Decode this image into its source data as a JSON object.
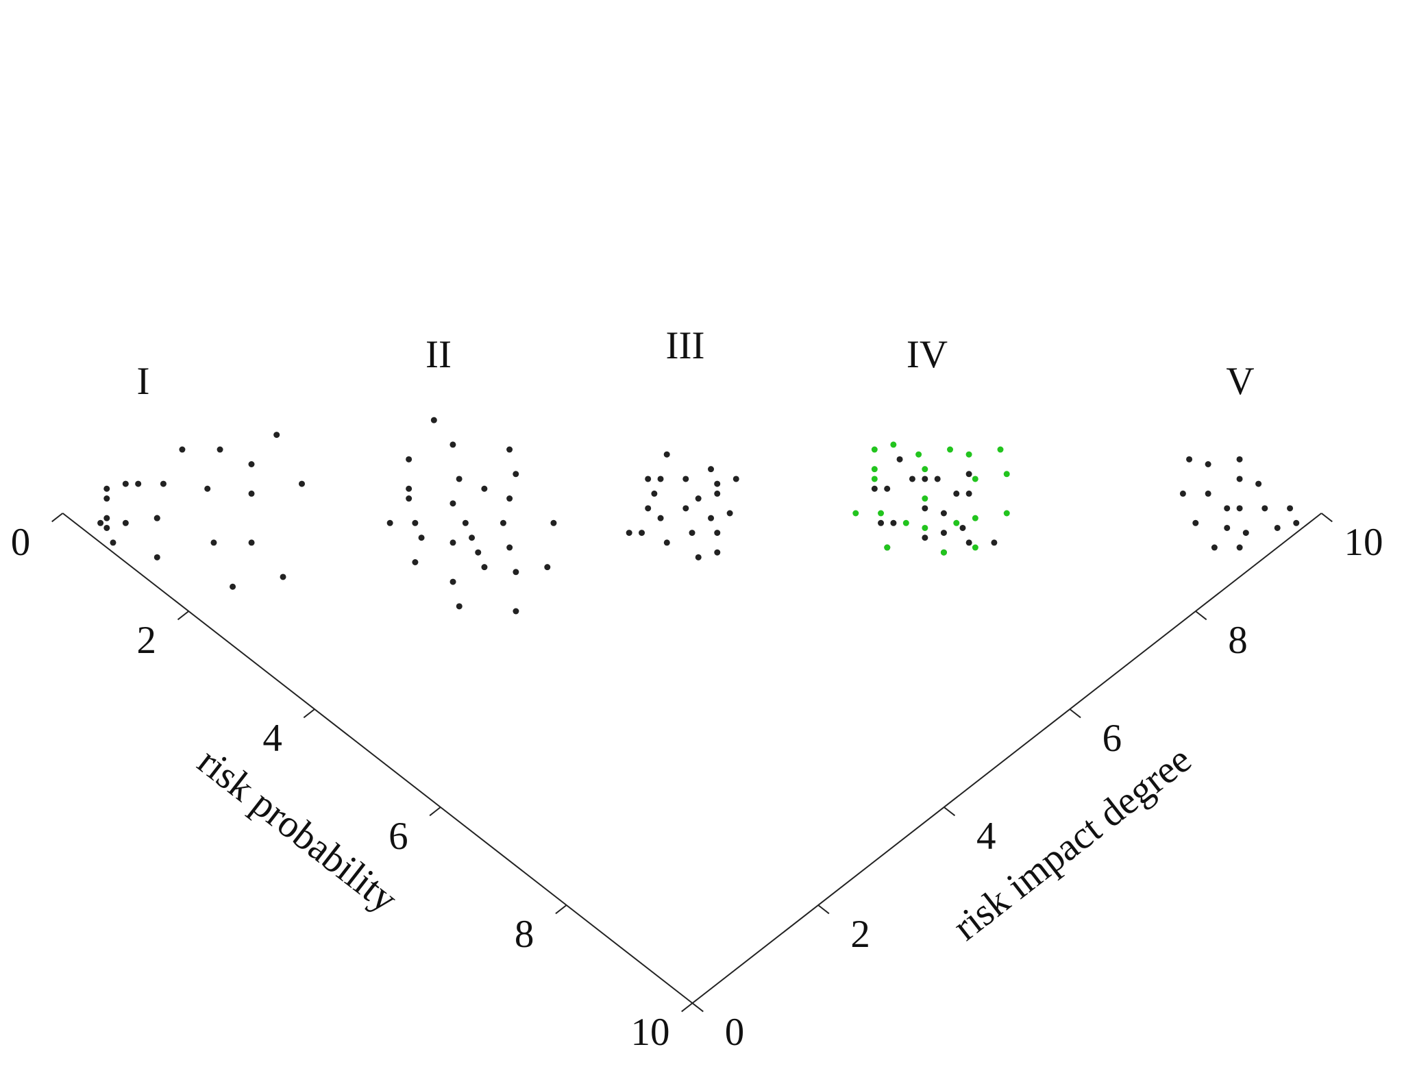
{
  "chart_data": {
    "type": "scatter",
    "xlabel": "risk probability",
    "ylabel": "risk impact degree",
    "xlim": [
      0,
      10
    ],
    "ylim": [
      0,
      10
    ],
    "xticks": [
      0,
      2,
      4,
      6,
      8,
      10
    ],
    "yticks": [
      0,
      2,
      4,
      6,
      8,
      10
    ],
    "grid": true,
    "annotations": [
      "I",
      "II",
      "III",
      "IV",
      "V"
    ],
    "series": [
      {
        "color": "#222222",
        "x": [
          0.2,
          0.4,
          0.3,
          0.6,
          0.8,
          0.5,
          0.1,
          0.9,
          1.2,
          0.7,
          0.3,
          1.0,
          1.5,
          0.4,
          0.6,
          1.8,
          2.1,
          0.9,
          1.3,
          0.2,
          0.5,
          1.6,
          2.4,
          0.8,
          3.3,
          2.8,
          3.9,
          3.1,
          2.5,
          3.6,
          4.2,
          2.9,
          3.4,
          3.0,
          2.4,
          3.8,
          4.4,
          3.2,
          2.7,
          3.5,
          4.0,
          2.2,
          3.7,
          3.3,
          2.9,
          4.6,
          3.1,
          2.6,
          3.9,
          3.4,
          2.0,
          4.1,
          4.9,
          4.6,
          5.2,
          4.8,
          5.0,
          4.4,
          5.4,
          4.7,
          5.1,
          4.5,
          5.3,
          4.9,
          4.2,
          5.6,
          4.8,
          5.0,
          4.6,
          5.2,
          4.3,
          5.5,
          4.9,
          4.7,
          6.8,
          6.5,
          7.1,
          6.9,
          6.3,
          7.3,
          6.7,
          7.0,
          6.4,
          7.2,
          6.6,
          6.1,
          7.5,
          6.9,
          6.8,
          7.4,
          6.2,
          7.0,
          6.6,
          7.7,
          9.5,
          9.2,
          9.7,
          9.0,
          9.4,
          9.8,
          8.8,
          9.6,
          9.3,
          8.6,
          9.1,
          9.9,
          8.9,
          9.5,
          8.4,
          9.7,
          9.2,
          8.7
        ],
        "values": [
          0.5,
          0.2,
          0.9,
          0.4,
          0.7,
          1.1,
          0.6,
          1.4,
          0.3,
          0.1,
          1.6,
          2.0,
          0.9,
          0.3,
          1.9,
          1.2,
          0.6,
          2.5,
          1.7,
          0.8,
          0.2,
          2.2,
          1.1,
          0.7,
          3.1,
          3.5,
          2.8,
          2.6,
          3.0,
          3.4,
          3.0,
          2.7,
          3.7,
          3.2,
          3.8,
          2.4,
          3.3,
          4.0,
          2.5,
          3.0,
          3.8,
          3.3,
          2.9,
          2.3,
          4.2,
          2.6,
          3.6,
          2.9,
          3.2,
          2.8,
          3.9,
          2.2,
          5.0,
          5.3,
          4.8,
          4.7,
          5.4,
          5.1,
          5.0,
          5.6,
          4.5,
          4.9,
          5.3,
          5.2,
          5.4,
          4.8,
          4.4,
          5.7,
          4.7,
          5.1,
          5.0,
          4.6,
          5.5,
          4.3,
          6.9,
          7.2,
          6.6,
          7.3,
          6.8,
          7.0,
          6.5,
          7.4,
          7.1,
          6.8,
          6.4,
          7.2,
          6.9,
          6.2,
          7.6,
          6.6,
          6.7,
          7.0,
          7.3,
          7.1,
          9.6,
          9.3,
          9.8,
          9.7,
          9.1,
          9.5,
          9.9,
          9.2,
          9.4,
          9.6,
          8.9,
          9.7,
          9.3,
          8.8,
          9.5,
          9.0,
          9.8,
          9.1
        ]
      },
      {
        "color": "#22c41e",
        "x": [
          6.7,
          6.2,
          7.0,
          6.9,
          6.0,
          7.3,
          6.5,
          7.1,
          6.4,
          6.8,
          5.8,
          7.5,
          6.3,
          7.2,
          6.6,
          6.1,
          7.6,
          6.9,
          6.4,
          7.4,
          5.9,
          6.8
        ],
        "values": [
          7.0,
          7.4,
          6.7,
          7.6,
          6.9,
          7.2,
          6.5,
          7.9,
          7.3,
          6.6,
          7.1,
          7.5,
          6.3,
          7.0,
          7.8,
          6.8,
          6.9,
          6.2,
          7.7,
          6.6,
          7.3,
          8.1
        ]
      }
    ]
  }
}
